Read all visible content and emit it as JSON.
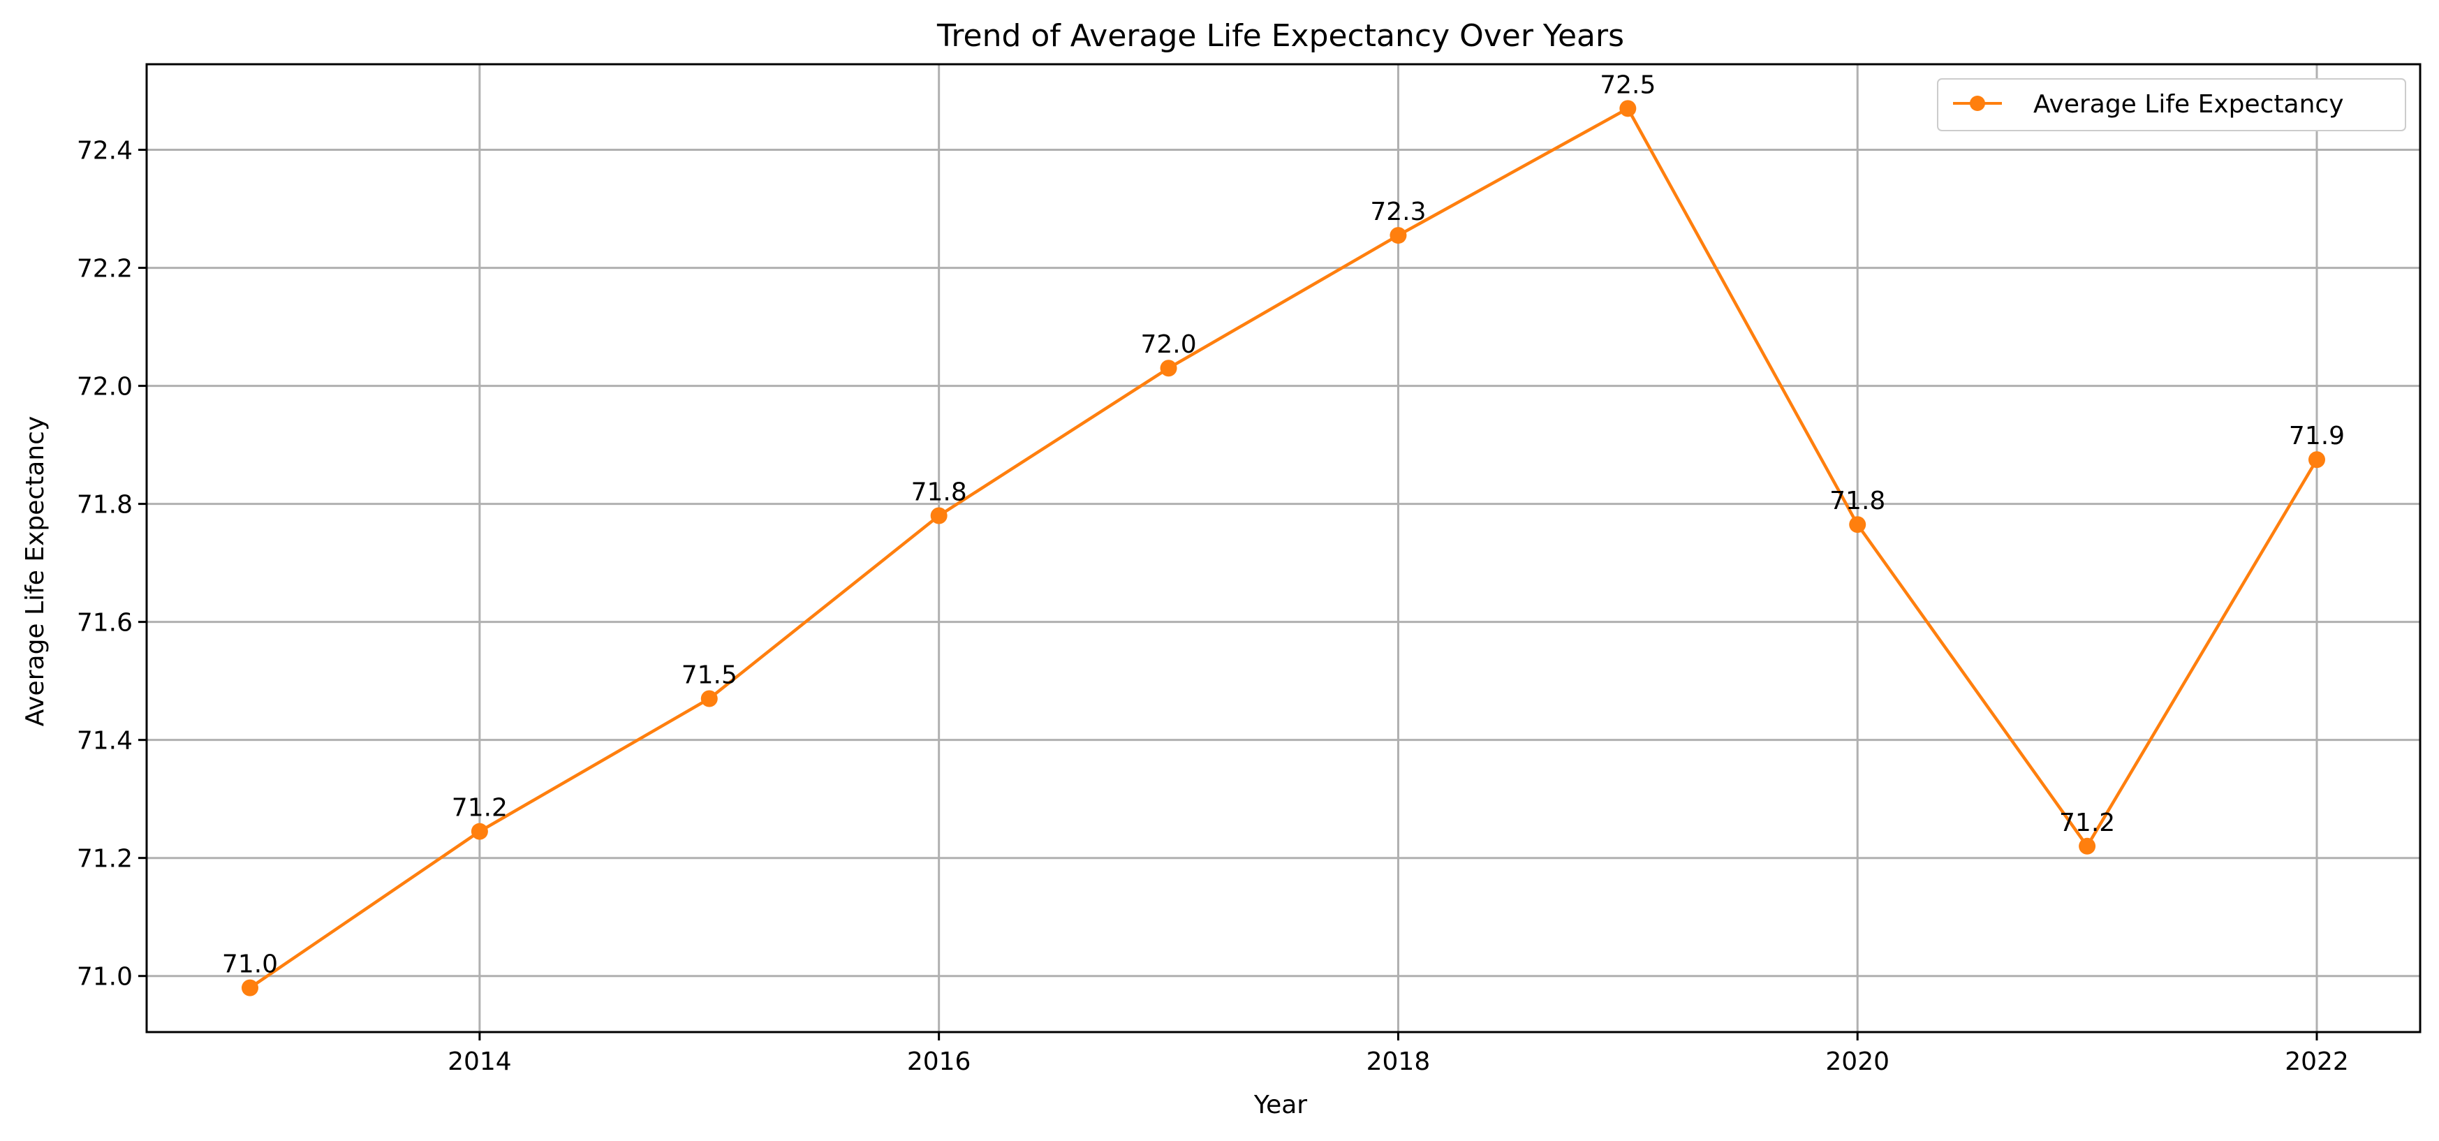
{
  "chart_data": {
    "type": "line",
    "title": "Trend of Average Life Expectancy Over Years",
    "xlabel": "Year",
    "ylabel": "Average Life Expectancy",
    "x": [
      2013,
      2014,
      2015,
      2016,
      2017,
      2018,
      2019,
      2020,
      2021,
      2022
    ],
    "series": [
      {
        "name": "Average Life Expectancy",
        "color": "#ff7f0e",
        "values": [
          70.98,
          71.245,
          71.47,
          71.78,
          72.03,
          72.255,
          72.47,
          71.765,
          71.22,
          71.875
        ],
        "labels": [
          "71.0",
          "71.2",
          "71.5",
          "71.8",
          "72.0",
          "72.3",
          "72.5",
          "71.8",
          "71.2",
          "71.9"
        ]
      }
    ],
    "xlim": [
      2012.55,
      2022.45
    ],
    "ylim": [
      70.905,
      72.545
    ],
    "xticks": [
      2014,
      2016,
      2018,
      2020,
      2022
    ],
    "xtick_labels": [
      "2014",
      "2016",
      "2018",
      "2020",
      "2022"
    ],
    "yticks": [
      71.0,
      71.2,
      71.4,
      71.6,
      71.8,
      72.0,
      72.2,
      72.4
    ],
    "ytick_labels": [
      "71.0",
      "71.2",
      "71.4",
      "71.6",
      "71.8",
      "72.0",
      "72.2",
      "72.4"
    ],
    "grid": true,
    "legend_position": "top-right",
    "grid_color": "#b0b0b0",
    "axes_color": "#000000"
  }
}
